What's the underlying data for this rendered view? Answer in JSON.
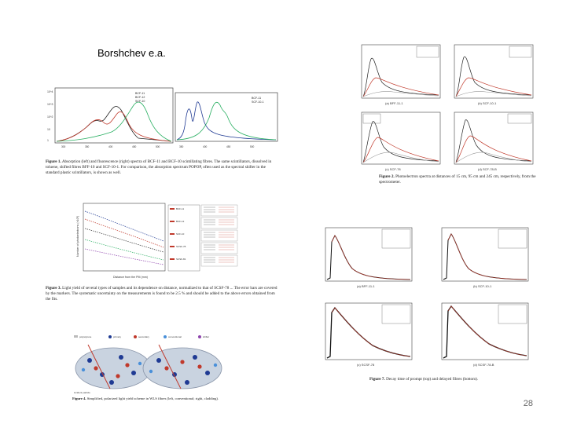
{
  "slide": {
    "author": "Borshchev e.a.",
    "page_number": "28"
  },
  "fig1": {
    "caption_label": "Figure 1.",
    "caption": "Absorption (left) and fluorescence (right) spectra of BCF-11 and BCF-10 scintillating fibres. The same scintillators, dissolved in toluene, shifted fibres BFF-10 and SCF-10-1. For comparison, the absorption spectrum POPOP, often used as the spectral shifter in the standard plastic scintillators, is shown as well.",
    "left_legend": [
      "BCF-11",
      "BCF-12",
      "SCF-10"
    ],
    "right_legend": [
      "BCF-11",
      "SCF-10-1"
    ]
  },
  "fig2": {
    "caption_label": "Figure 2.",
    "caption": "Photoelectron spectra at distances of 15 cm, 95 cm and 245 cm, respectively, from the spectrometer.",
    "subplots": [
      "(a) BFF-11-1",
      "(b) SCF-10-1",
      "(c) SCF-78",
      "(d) SCF-78-B"
    ]
  },
  "fig3": {
    "caption_label": "Figure 3.",
    "caption": "Light yield of several types of samples and its dependence on distance, normalized to that of SCSF-78 ... The error bars are covered by the markers. The systematic uncertainty on the measurements is found to be 2.5 % and should be added to the above errors obtained from the fits.",
    "ylabel": "Number of photoelectrons (×10³)",
    "xlabel": "Distance from the PM (mm)"
  },
  "fig4": {
    "caption_label": "Figure 4.",
    "caption": "Simplified, polarized light yield scheme in WLS fibres (left, conventional; right, cladding)."
  },
  "fig7": {
    "caption_label": "Figure 7.",
    "caption": "Decay time of prompt (top) and delayed fibres (bottom).",
    "subplots": [
      "(a) BFF-11-1",
      "(b) SCF-10-1",
      "(c) SCSF-78",
      "(d) SCSF-78-B"
    ]
  }
}
